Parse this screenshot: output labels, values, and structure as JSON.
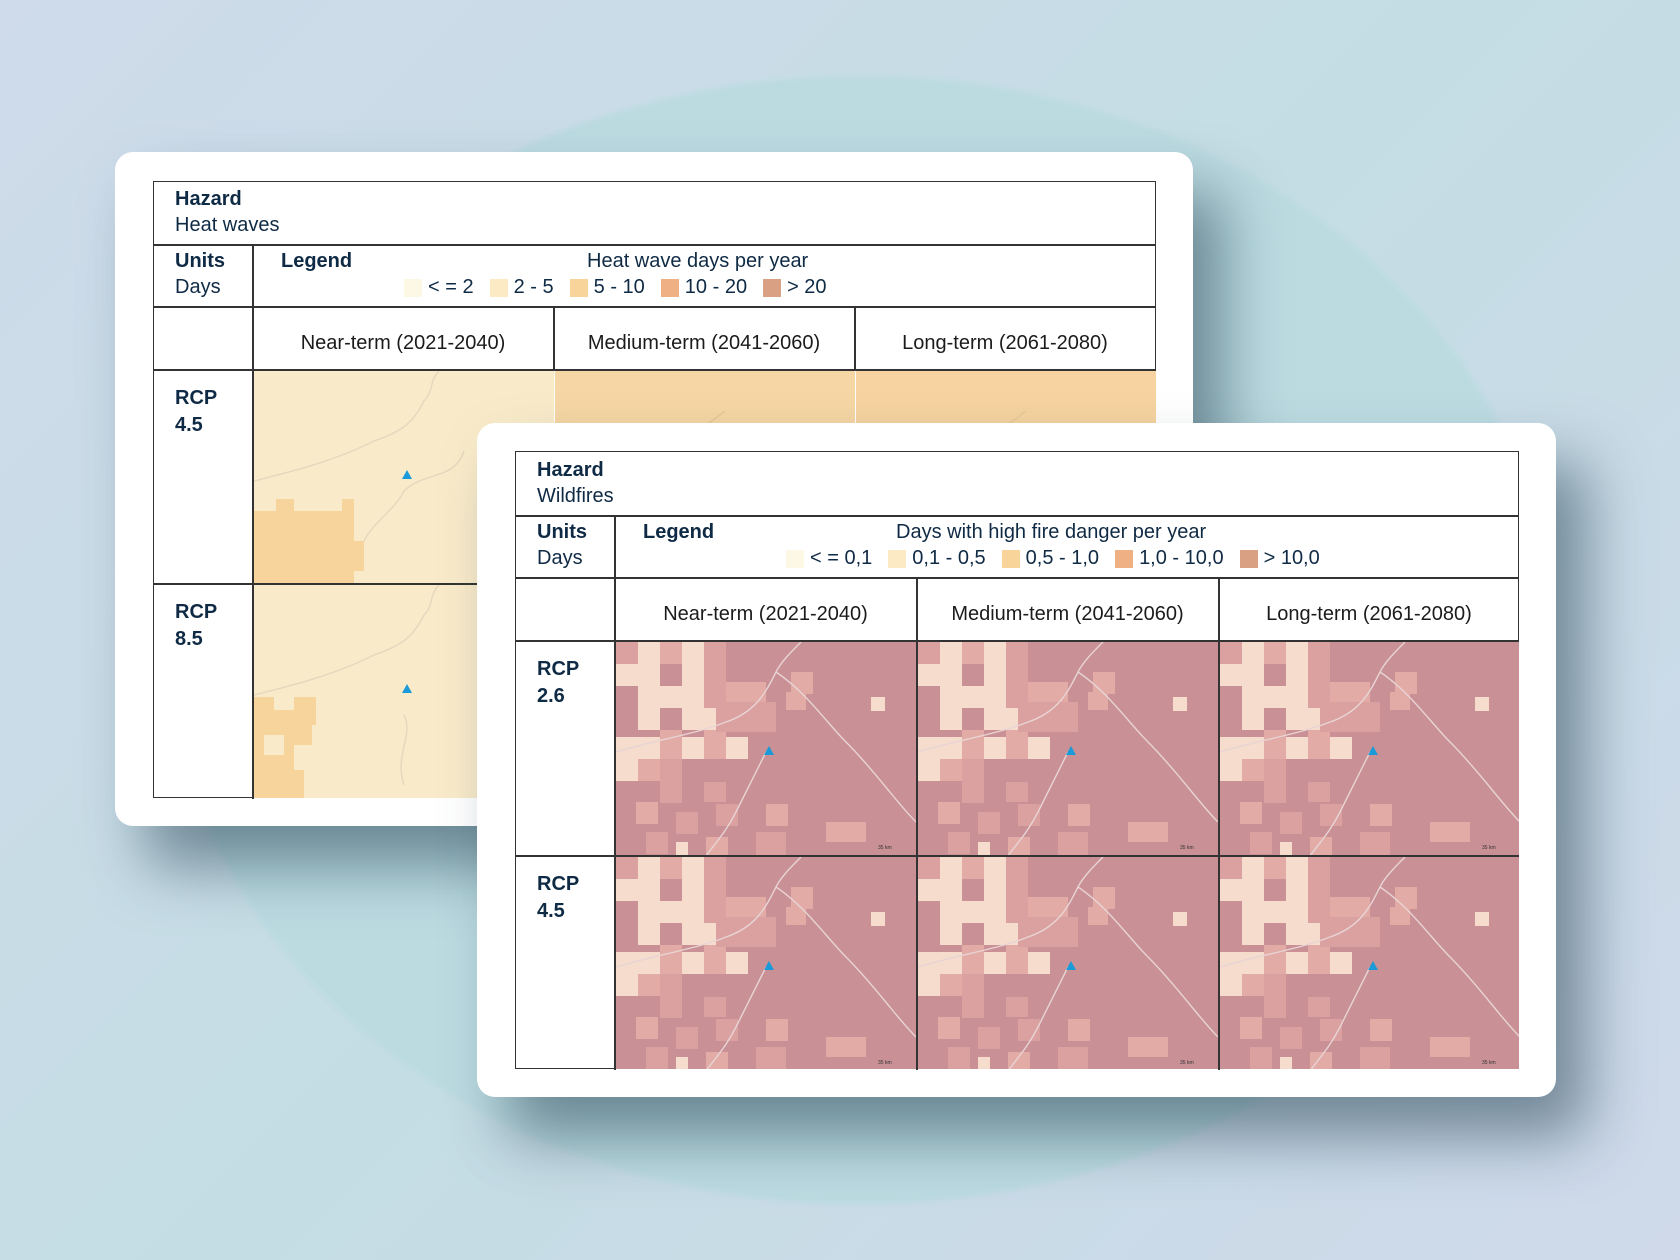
{
  "heat_card": {
    "hazard_label": "Hazard",
    "hazard_value": "Heat waves",
    "units_label": "Units",
    "units_value": "Days",
    "legend_label": "Legend",
    "legend_title": "Heat wave days per year",
    "legend_items": [
      {
        "label": "< = 2",
        "color": "#fdf8e6"
      },
      {
        "label": "2 - 5",
        "color": "#fbeac4"
      },
      {
        "label": "5 - 10",
        "color": "#f8d49a"
      },
      {
        "label": "10 - 20",
        "color": "#efb184"
      },
      {
        "label": "> 20",
        "color": "#d9a083"
      }
    ],
    "columns": [
      "Near-term (2021-2040)",
      "Medium-term (2041-2060)",
      "Long-term (2061-2080)"
    ],
    "rows": [
      {
        "label_line1": "RCP",
        "label_line2": "4.5"
      },
      {
        "label_line1": "RCP",
        "label_line2": "8.5"
      }
    ]
  },
  "fire_card": {
    "hazard_label": "Hazard",
    "hazard_value": "Wildfires",
    "units_label": "Units",
    "units_value": "Days",
    "legend_label": "Legend",
    "legend_title": "Days with high fire danger per year",
    "legend_items": [
      {
        "label": "< = 0,1",
        "color": "#fdf8e6"
      },
      {
        "label": "0,1 - 0,5",
        "color": "#fbeac4"
      },
      {
        "label": "0,5 - 1,0",
        "color": "#f8d49a"
      },
      {
        "label": "1,0 - 10,0",
        "color": "#efb184"
      },
      {
        "label": "> 10,0",
        "color": "#d9a083"
      }
    ],
    "columns": [
      "Near-term (2021-2040)",
      "Medium-term (2041-2060)",
      "Long-term (2061-2080)"
    ],
    "rows": [
      {
        "label_line1": "RCP",
        "label_line2": "2.6"
      },
      {
        "label_line1": "RCP",
        "label_line2": "4.5"
      }
    ],
    "scale_bar_label": "35 km"
  },
  "colors": {
    "heat_base": "#f9ebc9",
    "heat_patch": "#f7d49c",
    "fire_base": "#c99096",
    "fire_patch": "#dba0a0",
    "fire_light": "#f5dccd",
    "location_marker": "#1a9ad8"
  }
}
